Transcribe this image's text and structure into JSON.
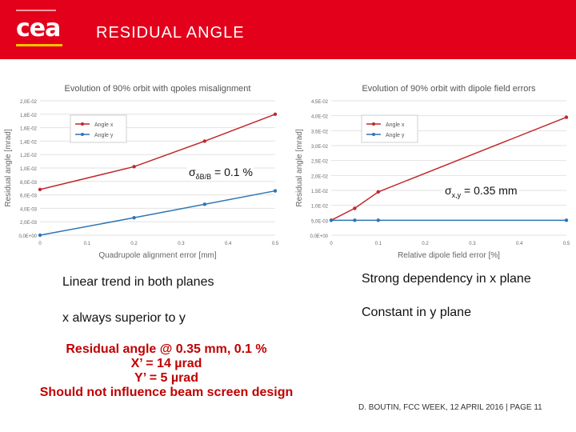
{
  "header": {
    "logo": "cea",
    "title": "RESIDUAL ANGLE"
  },
  "chart_data": [
    {
      "type": "line",
      "title": "Evolution of 90% orbit with qpoles misalignment",
      "xlabel": "Quadrupole alignment error [mm]",
      "ylabel": "Residual angle [mrad]",
      "xlim": [
        0,
        0.5
      ],
      "ylim": [
        0,
        0.02
      ],
      "x_ticks": [
        "0",
        "0.1",
        "0.2",
        "0.3",
        "0.4",
        "0.5"
      ],
      "y_ticks": [
        "0,0E+00",
        "2,0E-03",
        "4,0E-03",
        "6,0E-03",
        "8,0E-03",
        "1,0E-02",
        "1,2E-02",
        "1,4E-02",
        "1,6E-02",
        "1,8E-02",
        "2,0E-02"
      ],
      "legend": "top-left",
      "grid": true,
      "series": [
        {
          "name": "Angle x",
          "color": "#c0282d",
          "x": [
            0,
            0.2,
            0.35,
            0.5
          ],
          "y": [
            0.0068,
            0.0102,
            0.014,
            0.018
          ]
        },
        {
          "name": "Angle y",
          "color": "#2e75b6",
          "x": [
            0,
            0.2,
            0.35,
            0.5
          ],
          "y": [
            0.0,
            0.0026,
            0.0046,
            0.0066
          ]
        }
      ]
    },
    {
      "type": "line",
      "title": "Evolution of 90% orbit with dipole field errors",
      "xlabel": "Relative dipole field error [%]",
      "ylabel": "Residual angle [mrad]",
      "xlim": [
        0,
        0.5
      ],
      "ylim": [
        0,
        0.045
      ],
      "x_ticks": [
        "0",
        "0.1",
        "0.2",
        "0.3",
        "0.4",
        "0.5"
      ],
      "y_ticks": [
        "0,0E+00",
        "5,0E-03",
        "1,0E-02",
        "1,5E-02",
        "2,0E-02",
        "2,5E-02",
        "3,0E-02",
        "3,5E-02",
        "4,0E-02",
        "4,5E-02"
      ],
      "legend": "top-left",
      "grid": true,
      "series": [
        {
          "name": "Angle x",
          "color": "#c0282d",
          "x": [
            0,
            0.05,
            0.1,
            0.5
          ],
          "y": [
            0.005,
            0.009,
            0.0145,
            0.0395
          ]
        },
        {
          "name": "Angle y",
          "color": "#2e75b6",
          "x": [
            0,
            0.05,
            0.1,
            0.5
          ],
          "y": [
            0.005,
            0.005,
            0.005,
            0.005
          ]
        }
      ]
    }
  ],
  "labels": {
    "sigma_left_symbol": "σ",
    "sigma_left_sub": "δB/B",
    "sigma_left_value": " = 0.1 %",
    "sigma_right_symbol": "σ",
    "sigma_right_sub": "x,y",
    "sigma_right_value": " = 0.35 mm"
  },
  "notes": {
    "left_1": "Linear trend in both planes",
    "left_2": "x always superior to y",
    "right_1": "Strong dependency in x plane",
    "right_2": "Constant in y plane"
  },
  "conclusion": {
    "line1": "Residual angle @ 0.35 mm, 0.1 %",
    "line2": "X’ = 14 µrad",
    "line3": "Y’ = 5 µrad",
    "line4": "Should not influence beam screen design"
  },
  "footer": "D. BOUTIN, FCC WEEK, 12 APRIL 2016 | PAGE 11"
}
